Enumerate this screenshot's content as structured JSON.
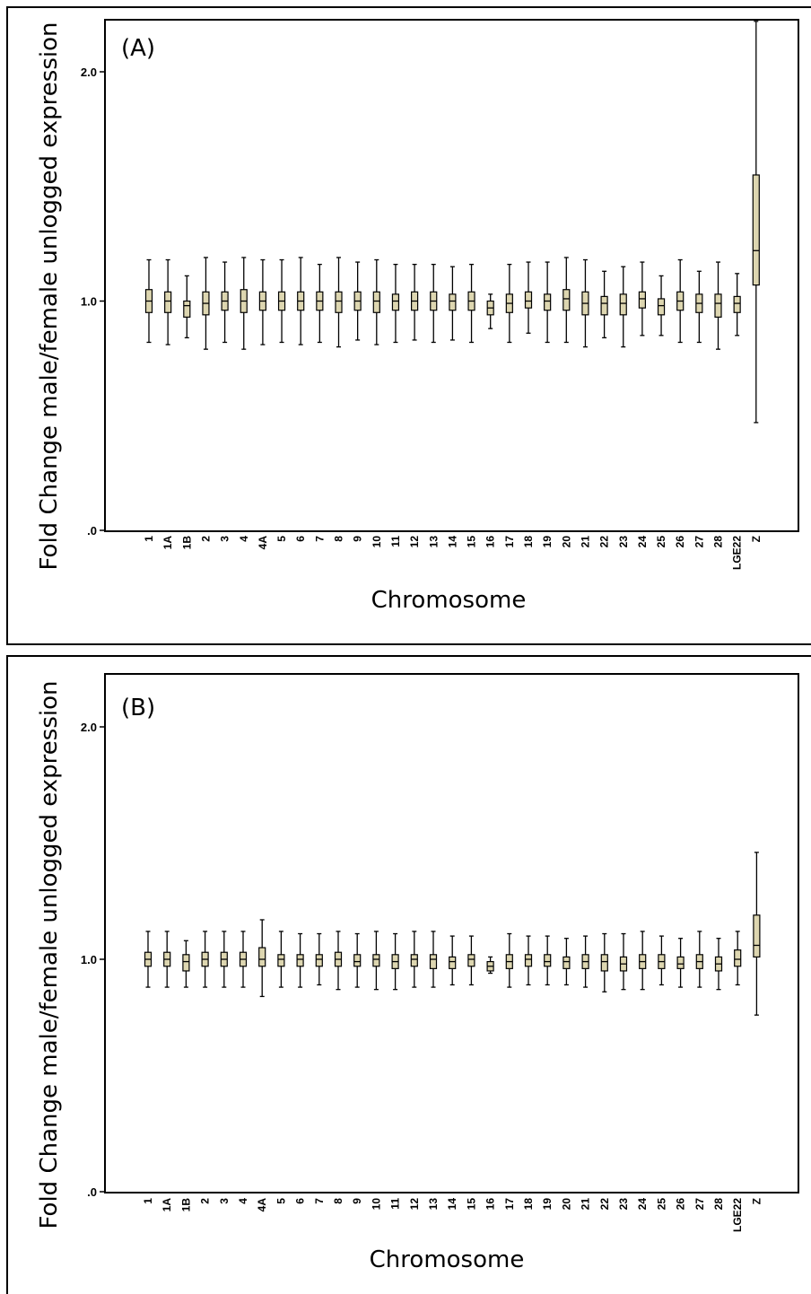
{
  "chart_data": [
    {
      "type": "boxplot",
      "panel_label": "(A)",
      "xlabel": "Chromosome",
      "ylabel": "Fold Change male/female unlogged expression",
      "ylim": [
        0,
        2.2
      ],
      "yticks": [
        {
          "value": 0,
          "label": ".0"
        },
        {
          "value": 1,
          "label": "1.0"
        },
        {
          "value": 2,
          "label": "2.0"
        }
      ],
      "categories": [
        "1",
        "1A",
        "1B",
        "2",
        "3",
        "4",
        "4A",
        "5",
        "6",
        "7",
        "8",
        "9",
        "10",
        "11",
        "12",
        "13",
        "14",
        "15",
        "16",
        "17",
        "18",
        "19",
        "20",
        "21",
        "22",
        "23",
        "24",
        "25",
        "26",
        "27",
        "28",
        "LGE22",
        "Z"
      ],
      "box_fill": "#ddd6b0",
      "boxes": [
        {
          "min": 0.82,
          "q1": 0.95,
          "median": 1.0,
          "q3": 1.05,
          "max": 1.18
        },
        {
          "min": 0.81,
          "q1": 0.95,
          "median": 1.0,
          "q3": 1.04,
          "max": 1.18
        },
        {
          "min": 0.84,
          "q1": 0.93,
          "median": 0.98,
          "q3": 1.0,
          "max": 1.11
        },
        {
          "min": 0.79,
          "q1": 0.94,
          "median": 0.99,
          "q3": 1.04,
          "max": 1.19
        },
        {
          "min": 0.82,
          "q1": 0.96,
          "median": 1.0,
          "q3": 1.04,
          "max": 1.17
        },
        {
          "min": 0.79,
          "q1": 0.95,
          "median": 1.0,
          "q3": 1.05,
          "max": 1.19
        },
        {
          "min": 0.81,
          "q1": 0.96,
          "median": 1.0,
          "q3": 1.04,
          "max": 1.18
        },
        {
          "min": 0.82,
          "q1": 0.96,
          "median": 1.0,
          "q3": 1.04,
          "max": 1.18
        },
        {
          "min": 0.81,
          "q1": 0.96,
          "median": 1.0,
          "q3": 1.04,
          "max": 1.19
        },
        {
          "min": 0.82,
          "q1": 0.96,
          "median": 1.0,
          "q3": 1.04,
          "max": 1.16
        },
        {
          "min": 0.8,
          "q1": 0.95,
          "median": 1.0,
          "q3": 1.04,
          "max": 1.19
        },
        {
          "min": 0.83,
          "q1": 0.96,
          "median": 1.0,
          "q3": 1.04,
          "max": 1.17
        },
        {
          "min": 0.81,
          "q1": 0.95,
          "median": 1.0,
          "q3": 1.04,
          "max": 1.18
        },
        {
          "min": 0.82,
          "q1": 0.96,
          "median": 1.0,
          "q3": 1.03,
          "max": 1.16
        },
        {
          "min": 0.83,
          "q1": 0.96,
          "median": 1.0,
          "q3": 1.04,
          "max": 1.16
        },
        {
          "min": 0.82,
          "q1": 0.96,
          "median": 1.0,
          "q3": 1.04,
          "max": 1.16
        },
        {
          "min": 0.83,
          "q1": 0.96,
          "median": 1.0,
          "q3": 1.03,
          "max": 1.15
        },
        {
          "min": 0.82,
          "q1": 0.96,
          "median": 1.0,
          "q3": 1.04,
          "max": 1.16
        },
        {
          "min": 0.88,
          "q1": 0.94,
          "median": 0.97,
          "q3": 1.0,
          "max": 1.03
        },
        {
          "min": 0.82,
          "q1": 0.95,
          "median": 0.99,
          "q3": 1.03,
          "max": 1.16
        },
        {
          "min": 0.86,
          "q1": 0.97,
          "median": 1.0,
          "q3": 1.04,
          "max": 1.17
        },
        {
          "min": 0.82,
          "q1": 0.96,
          "median": 1.0,
          "q3": 1.03,
          "max": 1.17
        },
        {
          "min": 0.82,
          "q1": 0.96,
          "median": 1.01,
          "q3": 1.05,
          "max": 1.19
        },
        {
          "min": 0.8,
          "q1": 0.94,
          "median": 0.99,
          "q3": 1.04,
          "max": 1.18
        },
        {
          "min": 0.84,
          "q1": 0.94,
          "median": 0.99,
          "q3": 1.02,
          "max": 1.13
        },
        {
          "min": 0.8,
          "q1": 0.94,
          "median": 0.99,
          "q3": 1.03,
          "max": 1.15
        },
        {
          "min": 0.85,
          "q1": 0.97,
          "median": 1.01,
          "q3": 1.04,
          "max": 1.17
        },
        {
          "min": 0.85,
          "q1": 0.94,
          "median": 0.98,
          "q3": 1.01,
          "max": 1.11
        },
        {
          "min": 0.82,
          "q1": 0.96,
          "median": 1.0,
          "q3": 1.04,
          "max": 1.18
        },
        {
          "min": 0.82,
          "q1": 0.95,
          "median": 0.99,
          "q3": 1.03,
          "max": 1.13
        },
        {
          "min": 0.79,
          "q1": 0.93,
          "median": 0.99,
          "q3": 1.03,
          "max": 1.17
        },
        {
          "min": 0.85,
          "q1": 0.95,
          "median": 0.99,
          "q3": 1.02,
          "max": 1.12
        },
        {
          "min": 0.47,
          "q1": 1.07,
          "median": 1.22,
          "q3": 1.55,
          "max": 2.22
        }
      ]
    },
    {
      "type": "boxplot",
      "panel_label": "(B)",
      "xlabel": "Chromosome",
      "ylabel": "Fold Change male/female unlogged expression",
      "ylim": [
        0,
        2.2
      ],
      "yticks": [
        {
          "value": 0,
          "label": ".0"
        },
        {
          "value": 1,
          "label": "1.0"
        },
        {
          "value": 2,
          "label": "2.0"
        }
      ],
      "categories": [
        "1",
        "1A",
        "1B",
        "2",
        "3",
        "4",
        "4A",
        "5",
        "6",
        "7",
        "8",
        "9",
        "10",
        "11",
        "12",
        "13",
        "14",
        "15",
        "16",
        "17",
        "18",
        "19",
        "20",
        "21",
        "22",
        "23",
        "24",
        "25",
        "26",
        "27",
        "28",
        "LGE22",
        "Z"
      ],
      "box_fill": "#ddd6b0",
      "boxes": [
        {
          "min": 0.88,
          "q1": 0.97,
          "median": 1.0,
          "q3": 1.03,
          "max": 1.12
        },
        {
          "min": 0.88,
          "q1": 0.97,
          "median": 1.0,
          "q3": 1.03,
          "max": 1.12
        },
        {
          "min": 0.88,
          "q1": 0.95,
          "median": 0.99,
          "q3": 1.02,
          "max": 1.08
        },
        {
          "min": 0.88,
          "q1": 0.97,
          "median": 1.0,
          "q3": 1.03,
          "max": 1.12
        },
        {
          "min": 0.88,
          "q1": 0.97,
          "median": 1.0,
          "q3": 1.03,
          "max": 1.12
        },
        {
          "min": 0.88,
          "q1": 0.97,
          "median": 1.0,
          "q3": 1.03,
          "max": 1.12
        },
        {
          "min": 0.84,
          "q1": 0.97,
          "median": 1.0,
          "q3": 1.05,
          "max": 1.17
        },
        {
          "min": 0.88,
          "q1": 0.97,
          "median": 1.0,
          "q3": 1.02,
          "max": 1.12
        },
        {
          "min": 0.88,
          "q1": 0.97,
          "median": 1.0,
          "q3": 1.02,
          "max": 1.11
        },
        {
          "min": 0.89,
          "q1": 0.97,
          "median": 1.0,
          "q3": 1.02,
          "max": 1.11
        },
        {
          "min": 0.87,
          "q1": 0.97,
          "median": 1.0,
          "q3": 1.03,
          "max": 1.12
        },
        {
          "min": 0.88,
          "q1": 0.97,
          "median": 0.99,
          "q3": 1.02,
          "max": 1.11
        },
        {
          "min": 0.87,
          "q1": 0.97,
          "median": 1.0,
          "q3": 1.02,
          "max": 1.12
        },
        {
          "min": 0.87,
          "q1": 0.96,
          "median": 0.99,
          "q3": 1.02,
          "max": 1.11
        },
        {
          "min": 0.88,
          "q1": 0.97,
          "median": 1.0,
          "q3": 1.02,
          "max": 1.12
        },
        {
          "min": 0.88,
          "q1": 0.96,
          "median": 1.0,
          "q3": 1.02,
          "max": 1.12
        },
        {
          "min": 0.89,
          "q1": 0.96,
          "median": 0.99,
          "q3": 1.01,
          "max": 1.1
        },
        {
          "min": 0.89,
          "q1": 0.97,
          "median": 1.0,
          "q3": 1.02,
          "max": 1.1
        },
        {
          "min": 0.94,
          "q1": 0.95,
          "median": 0.97,
          "q3": 0.99,
          "max": 1.01
        },
        {
          "min": 0.88,
          "q1": 0.96,
          "median": 0.99,
          "q3": 1.02,
          "max": 1.11
        },
        {
          "min": 0.89,
          "q1": 0.97,
          "median": 1.0,
          "q3": 1.02,
          "max": 1.1
        },
        {
          "min": 0.89,
          "q1": 0.97,
          "median": 0.99,
          "q3": 1.02,
          "max": 1.1
        },
        {
          "min": 0.89,
          "q1": 0.96,
          "median": 0.99,
          "q3": 1.01,
          "max": 1.09
        },
        {
          "min": 0.88,
          "q1": 0.96,
          "median": 0.99,
          "q3": 1.02,
          "max": 1.1
        },
        {
          "min": 0.86,
          "q1": 0.95,
          "median": 0.99,
          "q3": 1.02,
          "max": 1.11
        },
        {
          "min": 0.87,
          "q1": 0.95,
          "median": 0.98,
          "q3": 1.01,
          "max": 1.11
        },
        {
          "min": 0.87,
          "q1": 0.96,
          "median": 0.99,
          "q3": 1.02,
          "max": 1.12
        },
        {
          "min": 0.89,
          "q1": 0.96,
          "median": 0.99,
          "q3": 1.02,
          "max": 1.1
        },
        {
          "min": 0.88,
          "q1": 0.96,
          "median": 0.98,
          "q3": 1.01,
          "max": 1.09
        },
        {
          "min": 0.88,
          "q1": 0.96,
          "median": 0.99,
          "q3": 1.02,
          "max": 1.12
        },
        {
          "min": 0.87,
          "q1": 0.95,
          "median": 0.98,
          "q3": 1.01,
          "max": 1.09
        },
        {
          "min": 0.89,
          "q1": 0.97,
          "median": 1.0,
          "q3": 1.04,
          "max": 1.12
        },
        {
          "min": 0.76,
          "q1": 1.01,
          "median": 1.06,
          "q3": 1.19,
          "max": 1.46
        }
      ]
    }
  ]
}
